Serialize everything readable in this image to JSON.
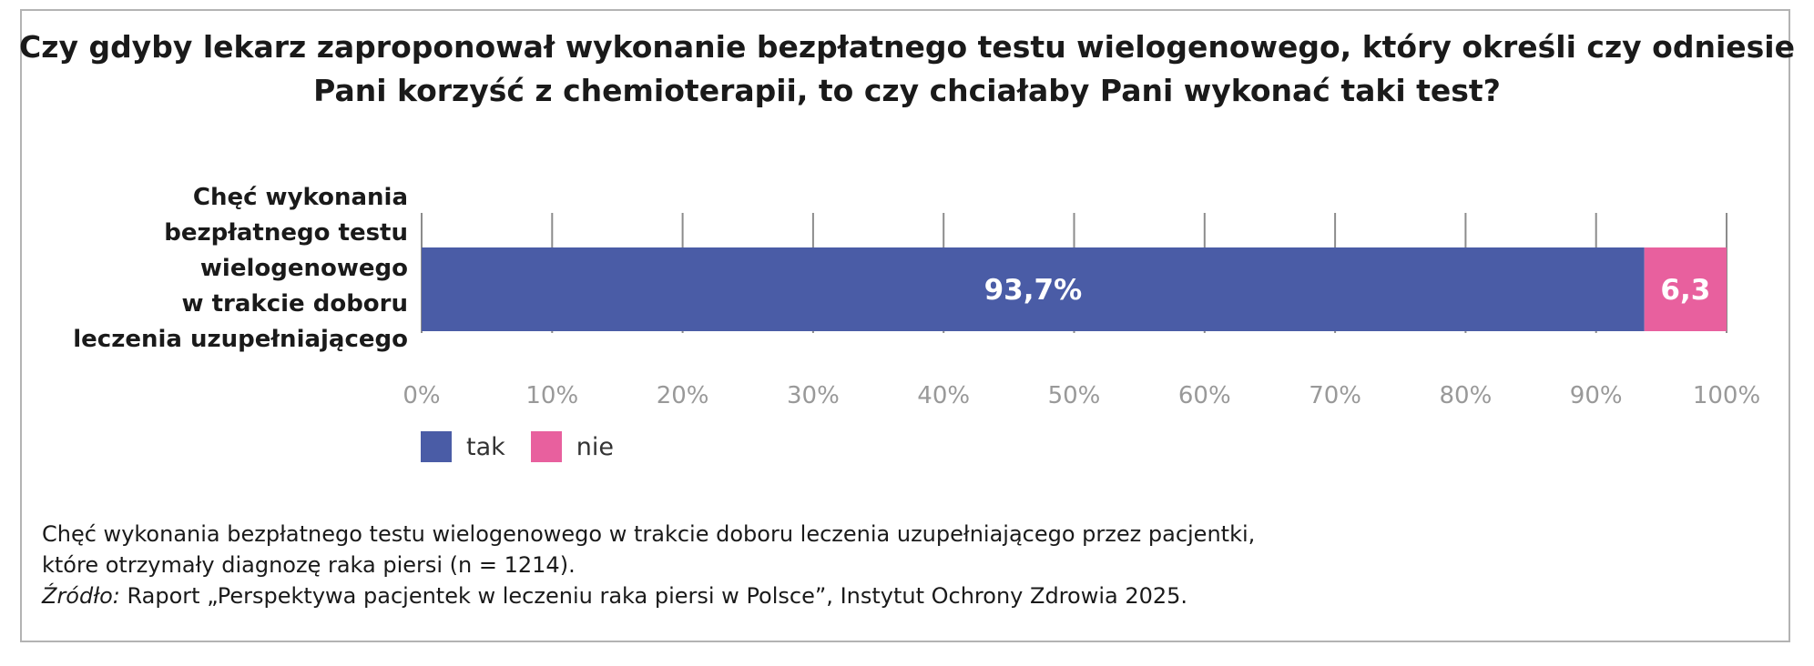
{
  "chart_data": {
    "type": "bar",
    "orientation": "horizontal",
    "stacked": true,
    "title": "Czy gdyby lekarz zaproponował wykonanie bezpłatnego testu wielogenowego, który określi czy odniesie Pani korzyść z chemioterapii, to czy chciałaby Pani wykonać taki test?",
    "categories": [
      "Chęć wykonania bezpłatnego testu wielogenowego w trakcie doboru leczenia uzupełniającego"
    ],
    "category_label_lines": [
      "Chęć wykonania",
      "bezpłatnego testu",
      "wielogenowego",
      "w trakcie doboru",
      "leczenia uzupełniającego"
    ],
    "series": [
      {
        "name": "tak",
        "values": [
          93.7
        ],
        "color": "#4a5ca6",
        "label": "93,7%"
      },
      {
        "name": "nie",
        "values": [
          6.3
        ],
        "color": "#e8609e",
        "label": "6,3"
      }
    ],
    "xlim": [
      0,
      100
    ],
    "xticks": [
      "0%",
      "10%",
      "20%",
      "30%",
      "40%",
      "50%",
      "60%",
      "70%",
      "80%",
      "90%",
      "100%"
    ],
    "grid": true,
    "legend_position": "bottom-left"
  },
  "notes": {
    "line1": "Chęć wykonania bezpłatnego testu wielogenowego w trakcie doboru leczenia uzupełniającego przez pacjentki,",
    "line2": "które otrzymały diagnozę raka piersi (n = 1214).",
    "source_label": "Źródło:",
    "source_text": " Raport „Perspektywa pacjentek w leczeniu raka piersi w Polsce”, Instytut Ochrony Zdrowia 2025."
  },
  "colors": {
    "grid": "#8c8c8c",
    "tick_text": "#999999",
    "label_text": "#ffffff"
  }
}
